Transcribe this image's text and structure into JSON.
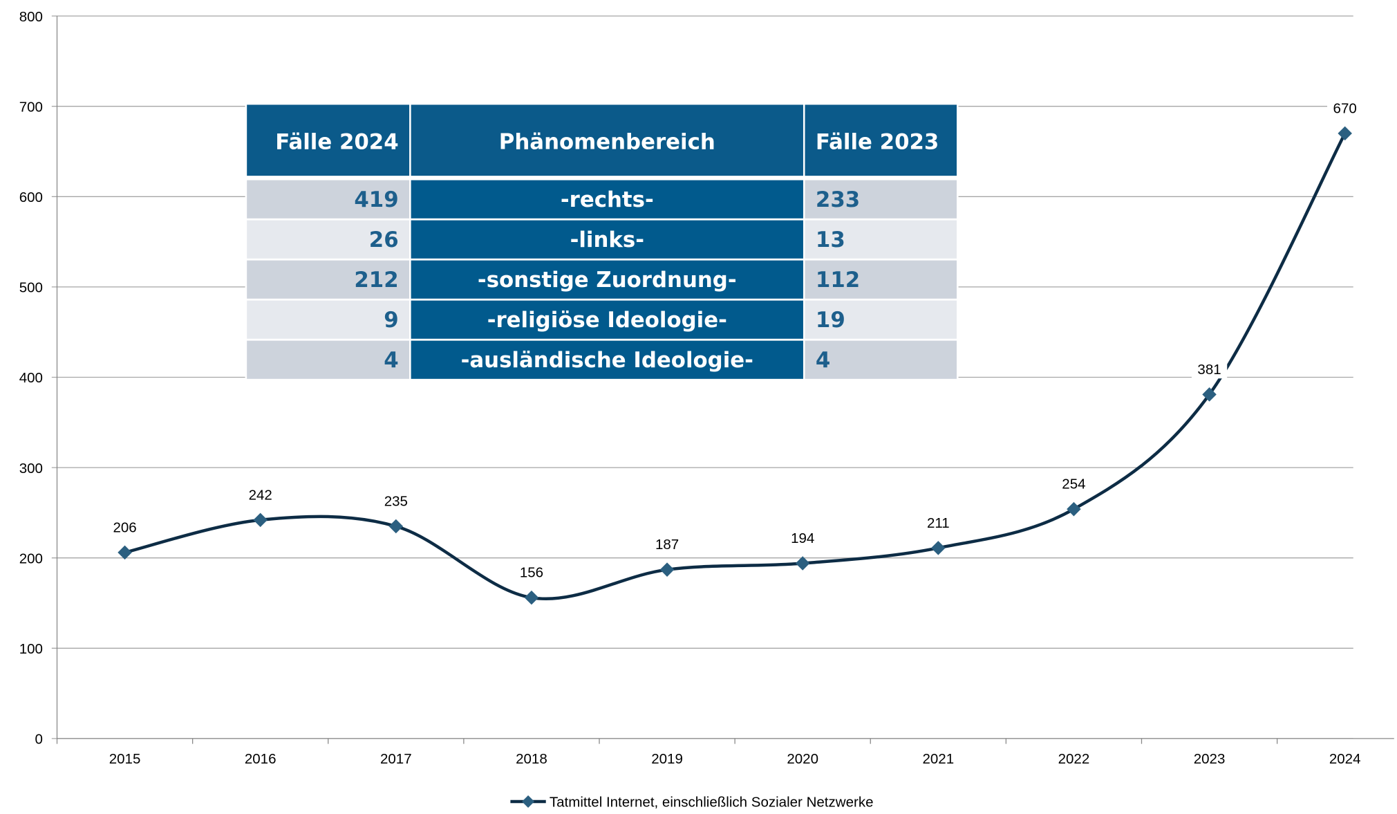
{
  "chart_data": {
    "type": "line",
    "categories": [
      "2015",
      "2016",
      "2017",
      "2018",
      "2019",
      "2020",
      "2021",
      "2022",
      "2023",
      "2024"
    ],
    "series": [
      {
        "name": "Tatmittel Internet, einschließlich Sozialer Netzwerke",
        "color": "#0d2c45",
        "marker_color": "#2b5f80",
        "values": [
          206,
          242,
          235,
          156,
          187,
          194,
          211,
          254,
          381,
          670
        ]
      }
    ],
    "ylim": [
      0,
      800
    ],
    "yticks": [
      0,
      100,
      200,
      300,
      400,
      500,
      600,
      700,
      800
    ],
    "grid": true,
    "legend": "bottom"
  },
  "table": {
    "header": [
      "Fälle 2024",
      "Phänomenbereich",
      "Fälle 2023"
    ],
    "rows": [
      [
        "419",
        "-rechts-",
        "233"
      ],
      [
        "26",
        "-links-",
        "13"
      ],
      [
        "212",
        "-sonstige Zuordnung-",
        "112"
      ],
      [
        "9",
        "-religiöse Ideologie-",
        "19"
      ],
      [
        "4",
        "-ausländische Ideologie-",
        "4"
      ]
    ]
  }
}
